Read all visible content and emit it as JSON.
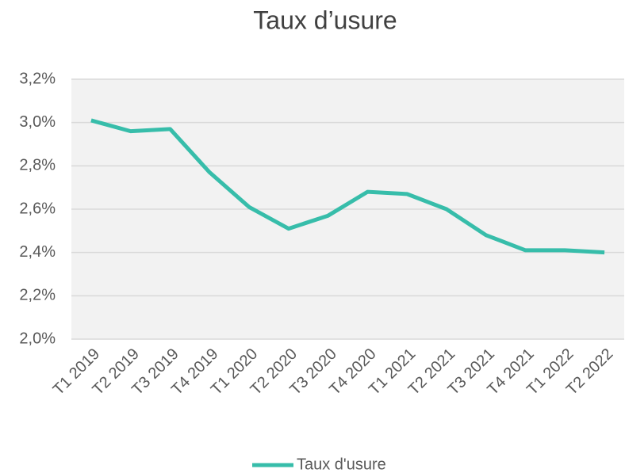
{
  "chart_data": {
    "type": "line",
    "title": "Taux d’usure",
    "categories": [
      "T1 2019",
      "T2 2019",
      "T3 2019",
      "T4 2019",
      "T1 2020",
      "T2 2020",
      "T3 2020",
      "T4 2020",
      "T1 2021",
      "T2 2021",
      "T3 2021",
      "T4 2021",
      "T1 2022",
      "T2 2022"
    ],
    "series": [
      {
        "name": "Taux d'usure",
        "color": "#37bdaa",
        "values": [
          3.01,
          2.96,
          2.97,
          2.77,
          2.61,
          2.51,
          2.57,
          2.68,
          2.67,
          2.6,
          2.48,
          2.41,
          2.41,
          2.4
        ]
      }
    ],
    "ylim": [
      2.0,
      3.2
    ],
    "yticks": [
      {
        "value": 2.0,
        "label": "2,0%"
      },
      {
        "value": 2.2,
        "label": "2,2%"
      },
      {
        "value": 2.4,
        "label": "2,4%"
      },
      {
        "value": 2.6,
        "label": "2,6%"
      },
      {
        "value": 2.8,
        "label": "2,8%"
      },
      {
        "value": 3.0,
        "label": "3,0%"
      },
      {
        "value": 3.2,
        "label": "3,2%"
      }
    ],
    "grid": true,
    "legend": "bottom"
  }
}
